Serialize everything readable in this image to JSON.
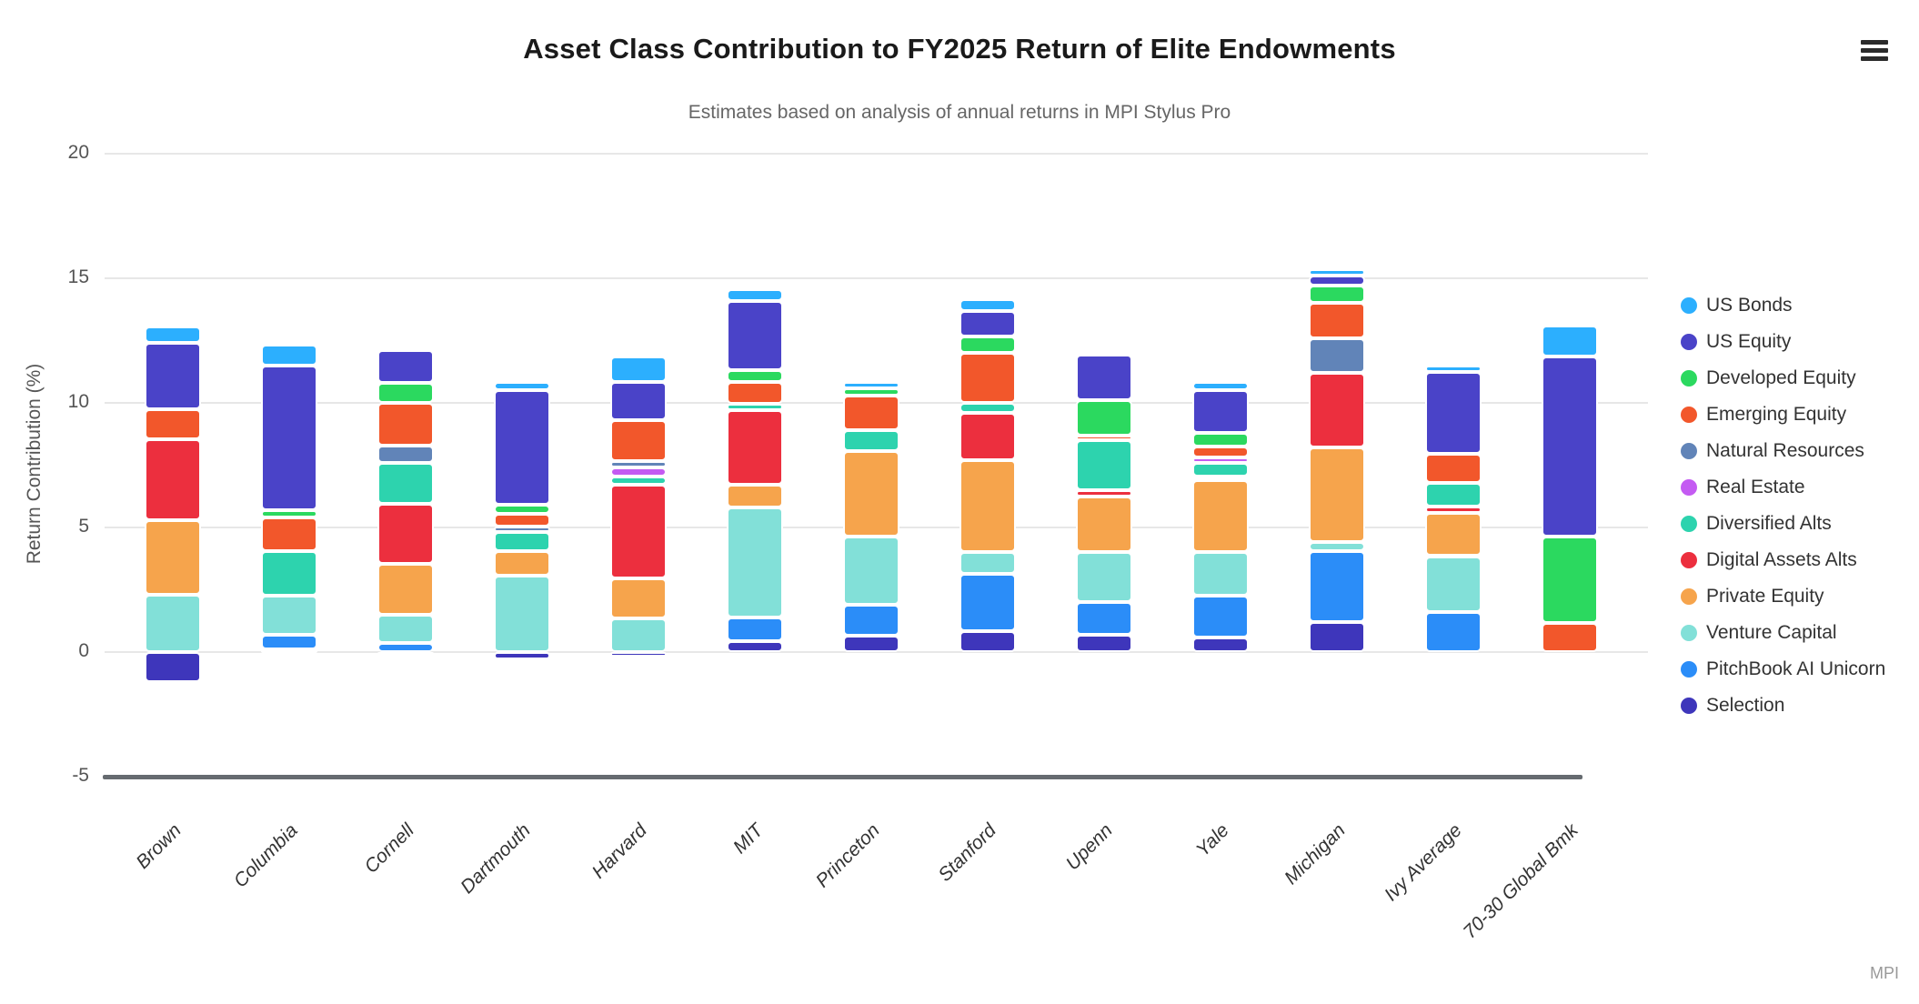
{
  "header": {
    "title": "Asset Class Contribution to FY2025 Return of Elite Endowments",
    "subtitle": "Estimates based on analysis of annual returns in MPI Stylus Pro"
  },
  "credits": "MPI",
  "y_axis": {
    "title": "Return Contribution (%)",
    "ticks": [
      20,
      15,
      10,
      5,
      0,
      -5
    ]
  },
  "chart_data": {
    "type": "bar",
    "stacking": "stacked-column",
    "title": "Asset Class Contribution to FY2025 Return of Elite Endowments",
    "subtitle": "Estimates based on analysis of annual returns in MPI Stylus Pro",
    "xlabel": "",
    "ylabel": "Return Contribution (%)",
    "ylim": [
      -5,
      20
    ],
    "grid": true,
    "legend_position": "right",
    "stack_order_note": "first series renders at top of each stack; negative values stack below zero",
    "categories": [
      "Brown",
      "Columbia",
      "Cornell",
      "Dartmouth",
      "Harvard",
      "MIT",
      "Princeton",
      "Stanford",
      "Upenn",
      "Yale",
      "Michigan",
      "Ivy Average",
      "70-30 Global Bmk"
    ],
    "series": [
      {
        "name": "US Bonds",
        "color": "#2caffe",
        "values": [
          0.65,
          0.85,
          0,
          0.35,
          1.0,
          0.45,
          0.25,
          0.45,
          0,
          0.35,
          0.25,
          0.25,
          1.25
        ]
      },
      {
        "name": "US Equity",
        "color": "#4a43c8",
        "values": [
          2.65,
          5.8,
          1.3,
          4.6,
          1.55,
          2.8,
          0,
          1.05,
          1.85,
          1.7,
          0.4,
          3.3,
          7.2
        ]
      },
      {
        "name": "Developed Equity",
        "color": "#2bd95f",
        "values": [
          0,
          0.3,
          0.8,
          0.35,
          0,
          0.45,
          0.3,
          0.65,
          1.4,
          0.55,
          0.7,
          0,
          3.5
        ]
      },
      {
        "name": "Emerging Equity",
        "color": "#f2572b",
        "values": [
          1.2,
          1.35,
          1.7,
          0.5,
          1.65,
          0.9,
          1.4,
          2.0,
          0.2,
          0.45,
          1.4,
          1.15,
          1.15
        ]
      },
      {
        "name": "Natural Resources",
        "color": "#6184b8",
        "values": [
          0,
          0,
          0.7,
          0.25,
          0.25,
          0,
          0,
          0,
          0,
          0,
          1.4,
          0,
          0
        ]
      },
      {
        "name": "Real Estate",
        "color": "#c45bf2",
        "values": [
          0,
          0,
          0,
          0,
          0.35,
          0,
          0,
          0,
          0,
          0.2,
          0,
          0,
          0
        ]
      },
      {
        "name": "Diversified Alts",
        "color": "#2dd3ae",
        "values": [
          0,
          1.8,
          1.65,
          0.75,
          0.35,
          0.25,
          0.85,
          0.4,
          2.0,
          0.55,
          0,
          0.95,
          0
        ]
      },
      {
        "name": "Digital Assets Alts",
        "color": "#ec2f3e",
        "values": [
          3.25,
          0,
          2.4,
          0,
          3.75,
          3.0,
          0,
          1.9,
          0.25,
          0.15,
          3.0,
          0.25,
          0
        ]
      },
      {
        "name": "Private Equity",
        "color": "#f6a44c",
        "values": [
          3.0,
          0,
          2.05,
          1.0,
          1.6,
          0.9,
          3.4,
          3.7,
          2.25,
          2.9,
          3.8,
          1.75,
          0
        ]
      },
      {
        "name": "Venture Capital",
        "color": "#82e0d8",
        "values": [
          2.3,
          1.55,
          1.15,
          3.05,
          1.35,
          4.4,
          2.75,
          0.85,
          2.0,
          1.75,
          0.35,
          2.25,
          0
        ]
      },
      {
        "name": "PitchBook AI Unicorn",
        "color": "#2b8df8",
        "values": [
          0,
          0.6,
          0.35,
          0,
          0,
          0.95,
          1.25,
          2.3,
          1.3,
          1.65,
          2.85,
          1.6,
          0
        ]
      },
      {
        "name": "Selection",
        "color": "#3e36bb",
        "values": [
          -1.2,
          0.1,
          -0.1,
          -0.3,
          -0.2,
          0.45,
          0.65,
          0.85,
          0.7,
          0.6,
          1.2,
          0,
          0
        ]
      }
    ]
  }
}
